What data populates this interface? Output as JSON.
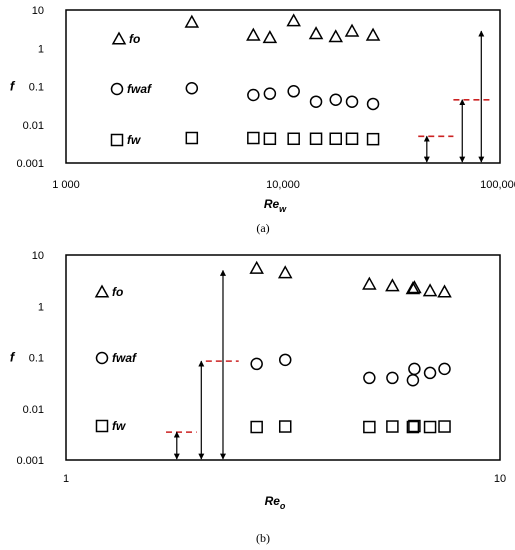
{
  "chart_data": [
    {
      "panel": "(a)",
      "type": "scatter",
      "xscale": "log",
      "yscale": "log",
      "xlim": [
        1000,
        100000
      ],
      "ylim": [
        0.001,
        10
      ],
      "xticks": [
        "1 000",
        "10,000",
        "100,000"
      ],
      "yticks": [
        "0.001",
        "0.01",
        "0.1",
        "1",
        "10"
      ],
      "xlabel": "Re",
      "xlabel_sub": "w",
      "ylabel": "f",
      "grid": false,
      "legend_position": "left",
      "series": [
        {
          "name": "fo",
          "marker": "triangle",
          "x": [
            3800,
            7300,
            8700,
            11200,
            14200,
            17500,
            20800,
            26000
          ],
          "y": [
            4.8,
            2.2,
            1.9,
            5.2,
            2.4,
            2.0,
            2.8,
            2.2
          ]
        },
        {
          "name": "fwaf",
          "marker": "circle",
          "x": [
            3800,
            7300,
            8700,
            11200,
            14200,
            17500,
            20800,
            26000
          ],
          "y": [
            0.09,
            0.06,
            0.065,
            0.075,
            0.04,
            0.045,
            0.04,
            0.035
          ]
        },
        {
          "name": "fw",
          "marker": "square",
          "x": [
            3800,
            7300,
            8700,
            11200,
            14200,
            17500,
            20800,
            26000
          ],
          "y": [
            0.0045,
            0.0045,
            0.0043,
            0.0043,
            0.0043,
            0.0043,
            0.0043,
            0.0042
          ]
        }
      ],
      "reference_lines": [
        {
          "x_range": [
            42000,
            61000
          ],
          "y": 0.005
        },
        {
          "x_range": [
            61000,
            90000
          ],
          "y": 0.045
        }
      ],
      "range_arrows": [
        {
          "x": 46000,
          "y_range": [
            0.001,
            0.005
          ]
        },
        {
          "x": 67000,
          "y_range": [
            0.001,
            0.045
          ]
        },
        {
          "x": 82000,
          "y_range": [
            0.001,
            2.8
          ]
        }
      ],
      "line_color": "#cc2222"
    },
    {
      "panel": "(b)",
      "type": "scatter",
      "xscale": "log",
      "yscale": "log",
      "xlim": [
        1,
        10
      ],
      "ylim": [
        0.001,
        10
      ],
      "xticks": [
        "1",
        "10"
      ],
      "yticks": [
        "0.001",
        "0.01",
        "0.1",
        "1",
        "10"
      ],
      "xlabel": "Re",
      "xlabel_sub": "o",
      "ylabel": "f",
      "grid": false,
      "legend_position": "left",
      "series": [
        {
          "name": "fo",
          "marker": "triangle",
          "x": [
            2.75,
            3.2,
            5.0,
            5.65,
            6.3,
            6.35,
            6.9,
            7.45
          ],
          "y": [
            5.5,
            4.5,
            2.7,
            2.5,
            2.2,
            2.3,
            2.0,
            1.9
          ]
        },
        {
          "name": "fwaf",
          "marker": "circle",
          "x": [
            2.75,
            3.2,
            5.0,
            5.65,
            6.3,
            6.35,
            6.9,
            7.45
          ],
          "y": [
            0.075,
            0.09,
            0.04,
            0.04,
            0.036,
            0.06,
            0.05,
            0.06
          ]
        },
        {
          "name": "fw",
          "marker": "square",
          "x": [
            2.75,
            3.2,
            5.0,
            5.65,
            6.3,
            6.35,
            6.9,
            7.45
          ],
          "y": [
            0.0044,
            0.0045,
            0.0044,
            0.0045,
            0.0044,
            0.0046,
            0.0044,
            0.0045
          ]
        }
      ],
      "reference_lines": [
        {
          "x_range": [
            1.7,
            2.0
          ],
          "y": 0.0035
        },
        {
          "x_range": [
            2.1,
            2.5
          ],
          "y": 0.085
        }
      ],
      "range_arrows": [
        {
          "x": 1.8,
          "y_range": [
            0.001,
            0.0035
          ]
        },
        {
          "x": 2.05,
          "y_range": [
            0.001,
            0.085
          ]
        },
        {
          "x": 2.3,
          "y_range": [
            0.001,
            5.0
          ]
        }
      ],
      "line_color": "#cc2222"
    }
  ]
}
